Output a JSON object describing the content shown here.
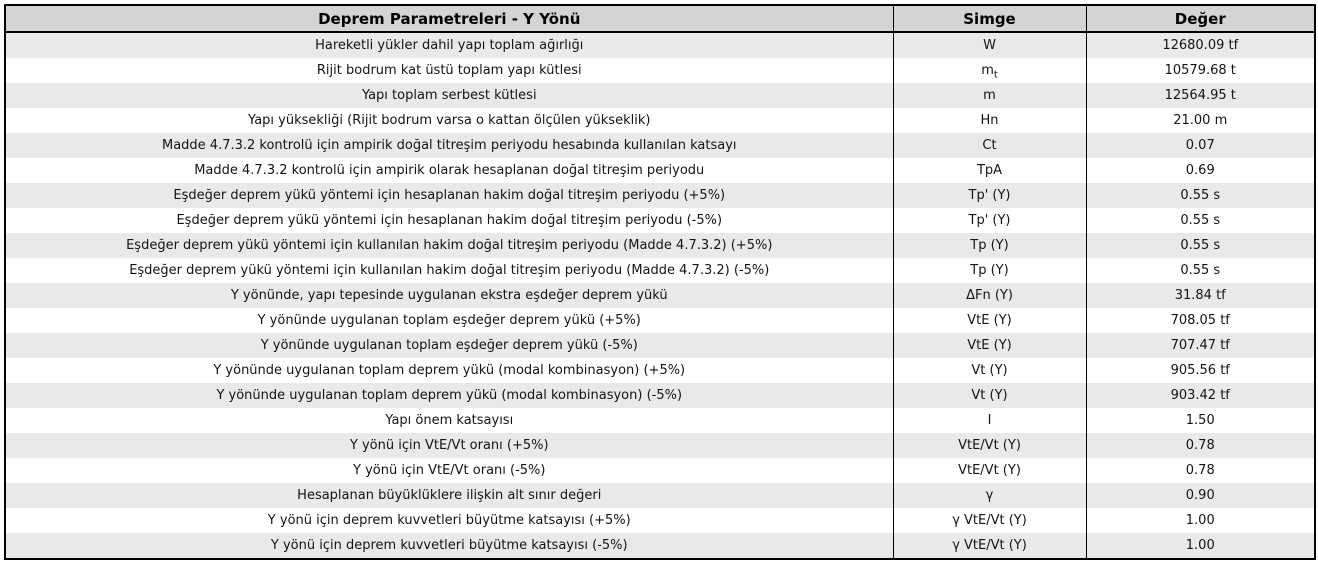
{
  "table": {
    "title": "Deprem Parametreleri - Y Yönü",
    "columns": {
      "symbol": "Simge",
      "value": "Değer"
    },
    "rows": [
      {
        "label": "Hareketli yükler dahil yapı toplam ağırlığı",
        "symbol": "W",
        "value": "12680.09 tf"
      },
      {
        "label": "Rijit bodrum kat üstü toplam yapı kütlesi",
        "symbol": "m",
        "symbol_sub": "t",
        "value": "10579.68 t"
      },
      {
        "label": "Yapı toplam serbest kütlesi",
        "symbol": "m",
        "value": "12564.95 t"
      },
      {
        "label": "Yapı yüksekliği (Rijit bodrum varsa o kattan ölçülen yükseklik)",
        "symbol": "Hn",
        "value": "21.00 m"
      },
      {
        "label": "Madde 4.7.3.2 kontrolü için ampirik doğal titreşim periyodu hesabında kullanılan katsayı",
        "symbol": "Ct",
        "value": "0.07"
      },
      {
        "label": "Madde 4.7.3.2 kontrolü için ampirik olarak hesaplanan doğal titreşim periyodu",
        "symbol": "TpA",
        "value": "0.69"
      },
      {
        "label": "Eşdeğer deprem yükü yöntemi için hesaplanan hakim doğal titreşim periyodu  (+5%)",
        "symbol": "Tp' (Y)",
        "value": "0.55 s"
      },
      {
        "label": "Eşdeğer deprem yükü yöntemi için hesaplanan hakim doğal titreşim periyodu  (-5%)",
        "symbol": "Tp' (Y)",
        "value": "0.55 s"
      },
      {
        "label": "Eşdeğer deprem yükü yöntemi için kullanılan hakim doğal titreşim periyodu (Madde 4.7.3.2) (+5%)",
        "symbol": "Tp (Y)",
        "value": "0.55 s"
      },
      {
        "label": "Eşdeğer deprem yükü yöntemi için kullanılan hakim doğal titreşim periyodu (Madde 4.7.3.2) (-5%)",
        "symbol": "Tp (Y)",
        "value": "0.55 s"
      },
      {
        "label": "Y yönünde, yapı tepesinde uygulanan ekstra eşdeğer deprem yükü",
        "symbol": "ΔFn (Y)",
        "value": "31.84 tf"
      },
      {
        "label": "Y yönünde uygulanan toplam eşdeğer deprem yükü (+5%)",
        "symbol": "VtE (Y)",
        "value": "708.05 tf"
      },
      {
        "label": "Y yönünde uygulanan toplam eşdeğer deprem yükü (-5%)",
        "symbol": "VtE (Y)",
        "value": "707.47 tf"
      },
      {
        "label": "Y yönünde uygulanan toplam deprem yükü (modal kombinasyon) (+5%)",
        "symbol": "Vt (Y)",
        "value": "905.56 tf"
      },
      {
        "label": "Y yönünde uygulanan toplam deprem yükü (modal kombinasyon) (-5%)",
        "symbol": "Vt (Y)",
        "value": "903.42 tf"
      },
      {
        "label": "Yapı önem katsayısı",
        "symbol": "I",
        "value": "1.50"
      },
      {
        "label": "Y yönü için VtE/Vt oranı  (+5%)",
        "symbol": "VtE/Vt (Y)",
        "value": "0.78"
      },
      {
        "label": "Y yönü için VtE/Vt oranı (-5%)",
        "symbol": "VtE/Vt (Y)",
        "value": "0.78"
      },
      {
        "label": "Hesaplanan büyüklüklere ilişkin alt sınır değeri",
        "symbol": "γ",
        "value": "0.90"
      },
      {
        "label": "Y yönü için deprem kuvvetleri büyütme katsayısı (+5%)",
        "symbol": "γ VtE/Vt (Y)",
        "value": "1.00"
      },
      {
        "label": "Y yönü için deprem kuvvetleri büyütme katsayısı (-5%)",
        "symbol": "γ VtE/Vt (Y)",
        "value": "1.00"
      }
    ]
  },
  "colors": {
    "header_bg": "#d4d4d4",
    "row_alt_bg": "#e9e9e9",
    "row_bg": "#ffffff",
    "border": "#000000",
    "text": "#141414"
  }
}
